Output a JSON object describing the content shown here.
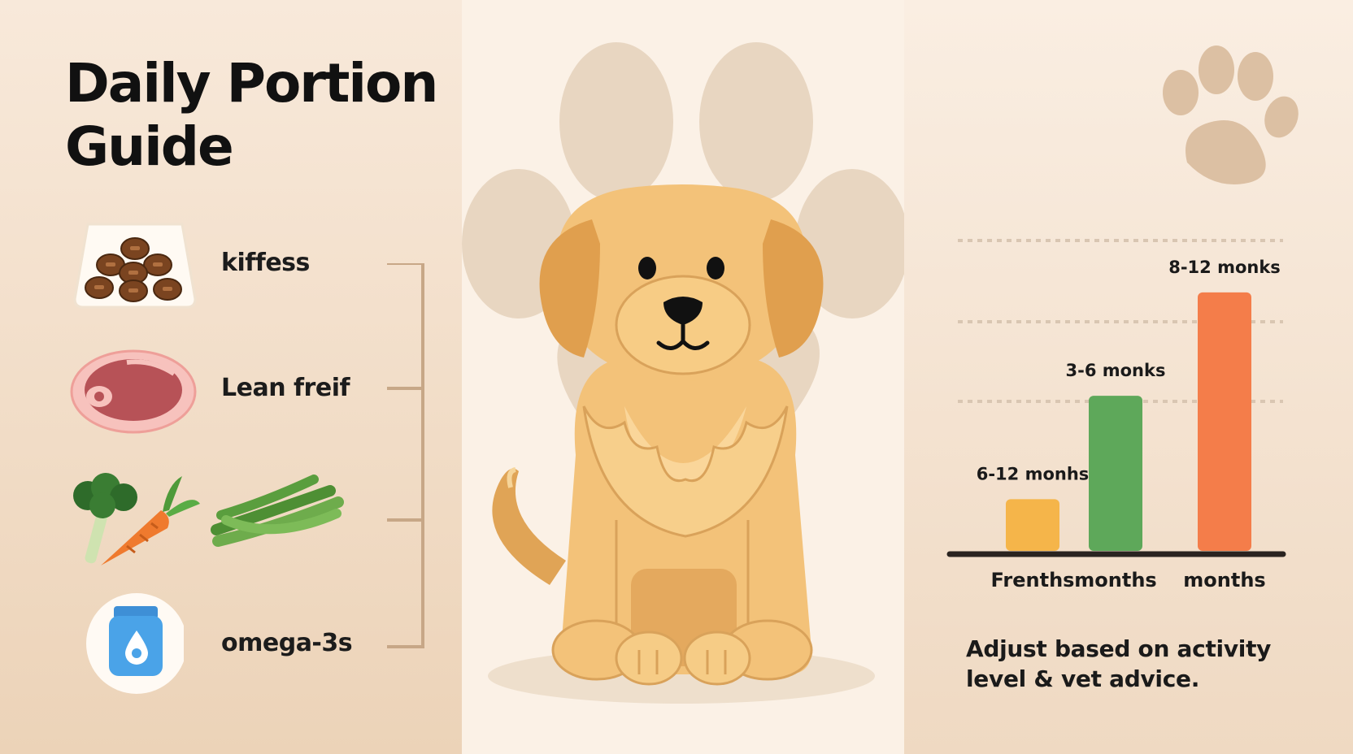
{
  "title": {
    "line1": "Daily Portion",
    "line2": "Guide"
  },
  "foods": [
    {
      "label": "kiffess",
      "icon": "kibble-bowl-icon"
    },
    {
      "label": "Lean freif",
      "icon": "steak-icon"
    },
    {
      "label": "",
      "icon": "vegetables-icon"
    },
    {
      "label": "omega-3s",
      "icon": "supplement-bottle-icon"
    }
  ],
  "chart_data": {
    "type": "bar",
    "categories": [
      "Frenths",
      "months",
      "months"
    ],
    "bar_labels": [
      "6-12 monhs",
      "3-6 monks",
      "8-12 monks"
    ],
    "values": [
      1,
      3,
      5
    ],
    "colors": [
      "#f5b54a",
      "#5ea85a",
      "#f47d4a"
    ],
    "ylim": [
      0,
      5.5
    ],
    "grid": true,
    "title": "",
    "xlabel": "",
    "ylabel": ""
  },
  "note": {
    "line1": "Adjust based on activity",
    "line2": "level & vet advice."
  },
  "colors": {
    "left_bg": "#f3dfca",
    "center_bg": "#fbf1e6",
    "right_bg": "#f5e4d2",
    "dog_fur": "#f6c97e",
    "paw_shadow": "#e4d2bd"
  }
}
